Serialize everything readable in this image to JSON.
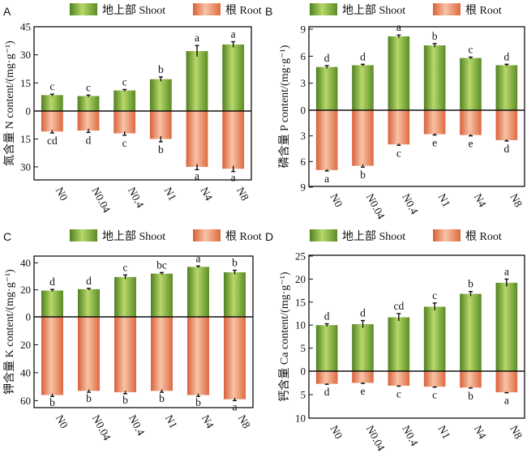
{
  "colors": {
    "shoot_top": "#d6e89a",
    "shoot_mid": "#86b640",
    "shoot_dark": "#4d7f1e",
    "root_top": "#f7cdb6",
    "root_mid": "#f0926c",
    "root_dark": "#d65a34"
  },
  "legend": {
    "shoot": "地上部 Shoot",
    "root": "根 Root"
  },
  "chart_data": [
    {
      "type": "bar",
      "panel": "A",
      "ylabel": "氮含量 N content/(mg·g⁻¹)",
      "categories": [
        "N0",
        "N0.04",
        "N0.4",
        "N1",
        "N4",
        "N8"
      ],
      "yticks_shoot": [
        0,
        15,
        30,
        45
      ],
      "yticks_root": [
        15,
        30
      ],
      "shoot_max": 45,
      "root_max": 37,
      "series": [
        {
          "name": "地上部 Shoot",
          "values": [
            8.5,
            8,
            11,
            17,
            32,
            35.5
          ],
          "errors": [
            0.5,
            0.5,
            0.5,
            1.2,
            3,
            1.5
          ],
          "labels": [
            "c",
            "c",
            "c",
            "b",
            "a",
            "a"
          ]
        },
        {
          "name": "根 Root",
          "values": [
            11,
            10.5,
            12,
            15,
            30,
            31
          ],
          "errors": [
            0.8,
            1,
            1,
            1.5,
            1.5,
            1.5
          ],
          "labels": [
            "cd",
            "d",
            "c",
            "b",
            "a",
            "a"
          ]
        }
      ]
    },
    {
      "type": "bar",
      "panel": "B",
      "ylabel": "磷含量 P content/(mg·g⁻¹)",
      "categories": [
        "N0",
        "N0.04",
        "N0.4",
        "N1",
        "N4",
        "N8"
      ],
      "yticks_shoot": [
        0,
        3,
        6,
        9
      ],
      "yticks_root": [
        3,
        6,
        9
      ],
      "shoot_max": 9,
      "root_max": 9,
      "series": [
        {
          "name": "地上部 Shoot",
          "values": [
            4.8,
            5,
            8.2,
            7.2,
            5.8,
            5
          ],
          "errors": [
            0.15,
            0.1,
            0.15,
            0.2,
            0.1,
            0.1
          ],
          "labels": [
            "d",
            "d",
            "a",
            "b",
            "c",
            "d"
          ]
        },
        {
          "name": "根 Root",
          "values": [
            7,
            6.5,
            4,
            2.8,
            2.9,
            3.5
          ],
          "errors": [
            0.1,
            0.15,
            0.1,
            0.1,
            0.1,
            0.1
          ],
          "labels": [
            "a",
            "b",
            "c",
            "e",
            "e",
            "d"
          ]
        }
      ]
    },
    {
      "type": "bar",
      "panel": "C",
      "ylabel": "钾含量 K content/(mg·g⁻¹)",
      "categories": [
        "N0",
        "N0.04",
        "N0.4",
        "N1",
        "N4",
        "N8"
      ],
      "yticks_shoot": [
        0,
        20,
        40
      ],
      "yticks_root": [
        20,
        40,
        60
      ],
      "shoot_max": 45,
      "root_max": 65,
      "series": [
        {
          "name": "地上部 Shoot",
          "values": [
            19.5,
            20.5,
            29.5,
            32,
            37,
            33
          ],
          "errors": [
            0.8,
            0.6,
            1.5,
            0.8,
            0.6,
            1.5
          ],
          "labels": [
            "d",
            "d",
            "c",
            "bc",
            "a",
            "b"
          ]
        },
        {
          "name": "根 Root",
          "values": [
            56,
            53,
            54,
            53,
            56,
            59
          ],
          "errors": [
            1,
            1,
            1,
            1,
            1,
            1
          ],
          "labels": [
            "b",
            "b",
            "b",
            "b",
            "b",
            "a"
          ]
        }
      ]
    },
    {
      "type": "bar",
      "panel": "D",
      "ylabel": "钙含量 Ca content/(mg·g⁻¹)",
      "categories": [
        "N0",
        "N0.04",
        "N0.4",
        "N1",
        "N4",
        "N8"
      ],
      "yticks_shoot": [
        0,
        5,
        10,
        15,
        20,
        25
      ],
      "yticks_root": [
        5,
        10
      ],
      "shoot_max": 25,
      "root_max": 10,
      "series": [
        {
          "name": "地上部 Shoot",
          "values": [
            10,
            10.2,
            11.7,
            14,
            16.8,
            19.2
          ],
          "errors": [
            0.3,
            0.8,
            0.8,
            0.8,
            0.5,
            0.8
          ],
          "labels": [
            "d",
            "d",
            "cd",
            "c",
            "b",
            "a"
          ]
        },
        {
          "name": "根 Root",
          "values": [
            2.7,
            2.5,
            3.1,
            3.3,
            3.5,
            4.5
          ],
          "errors": [
            0.1,
            0.1,
            0.1,
            0.1,
            0.1,
            0.1
          ],
          "labels": [
            "d",
            "e",
            "c",
            "c",
            "b",
            "a"
          ]
        }
      ]
    }
  ]
}
